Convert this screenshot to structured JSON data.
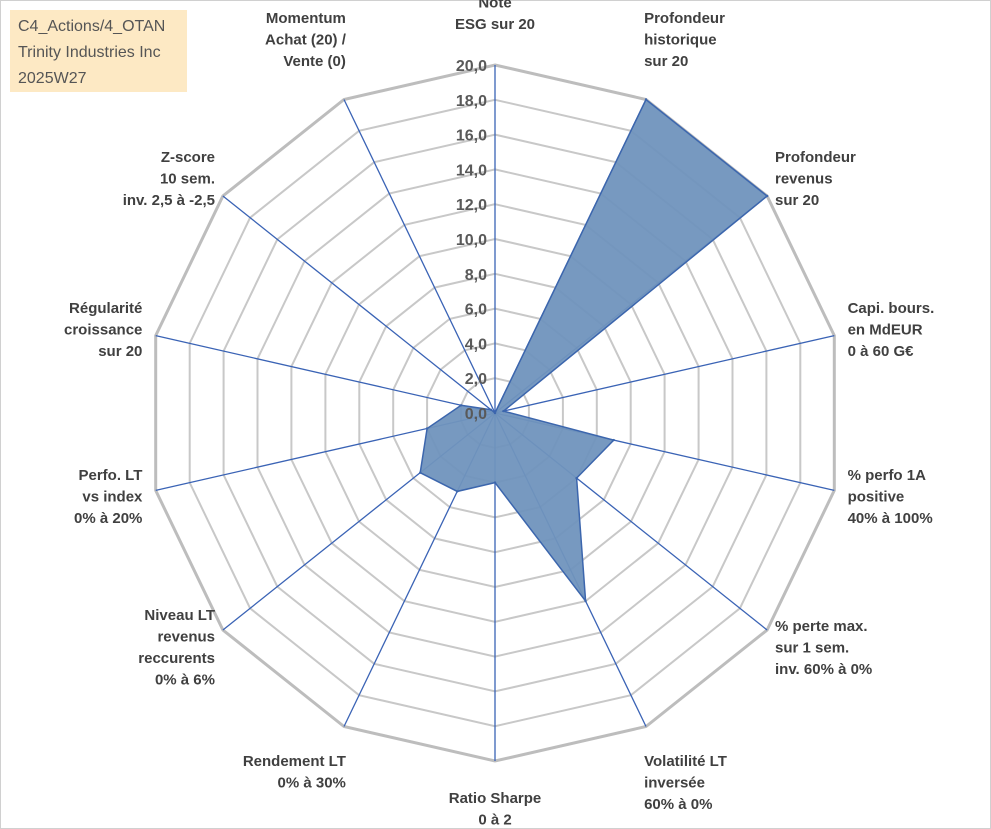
{
  "header": {
    "lines": [
      "C4_Actions/4_OTAN",
      "Trinity Industries Inc",
      "2025W27"
    ]
  },
  "colors": {
    "fill": "#7093bd",
    "stroke": "#3c66ad",
    "spoke": "#3a63b5",
    "grid": "#c8c8c8",
    "info_bg": "#fde9c4"
  },
  "chart_data": {
    "type": "radar",
    "rmin": 0,
    "rmax": 20,
    "tick_step": 2,
    "tick_labels": [
      "0,0",
      "2,0",
      "4,0",
      "6,0",
      "8,0",
      "10,0",
      "12,0",
      "14,0",
      "16,0",
      "18,0",
      "20,0"
    ],
    "grid": true,
    "axes": [
      [
        "Note",
        "ESG sur 20"
      ],
      [
        "Profondeur",
        "historique",
        "sur 20"
      ],
      [
        "Profondeur",
        "revenus",
        "sur 20"
      ],
      [
        "Capi. bours.",
        "en MdEUR",
        "0 à 60 G€"
      ],
      [
        "% perfo 1A",
        "positive",
        "40% à 100%"
      ],
      [
        "% perte max.",
        "sur 1 sem.",
        "inv. 60% à 0%"
      ],
      [
        "Volatilité LT",
        "inversée",
        "60% à 0%"
      ],
      [
        "Ratio Sharpe",
        "0 à 2"
      ],
      [
        "Rendement LT",
        "0% à 30%"
      ],
      [
        "Niveau LT",
        "revenus",
        "reccurents",
        "0% à 6%"
      ],
      [
        "Perfo. LT",
        "vs index",
        "0% à 20%"
      ],
      [
        "Régularité",
        "croissance",
        "sur 20"
      ],
      [
        "Z-score",
        "10 sem.",
        "inv. 2,5 à -2,5"
      ],
      [
        "Momentum",
        "Achat (20) /",
        "Vente (0)"
      ]
    ],
    "series": [
      {
        "values": [
          0.0,
          20.0,
          20.0,
          0.5,
          7.0,
          6.0,
          12.0,
          4.0,
          5.0,
          5.5,
          4.0,
          2.0,
          0.3,
          0.0
        ]
      }
    ]
  }
}
